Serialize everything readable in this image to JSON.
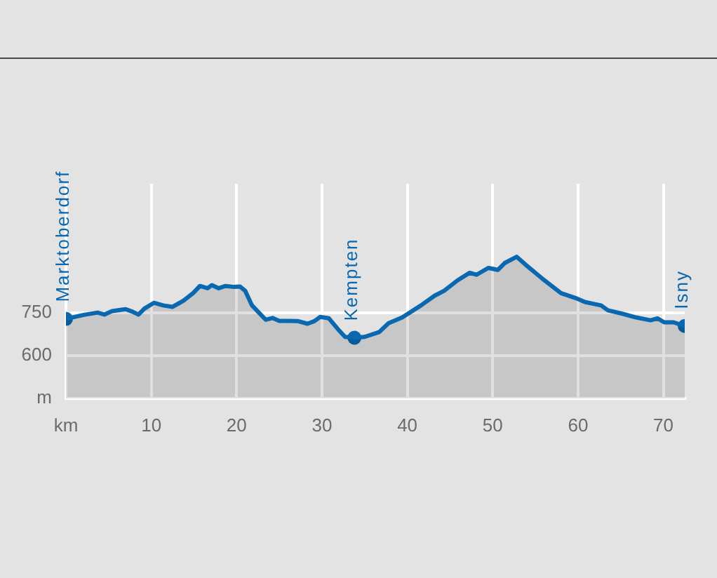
{
  "chart_data": {
    "type": "area",
    "series": [
      {
        "color": "#0a68b0",
        "marker": "none",
        "x": [
          0,
          2.1,
          3.7,
          4.5,
          5.4,
          7.0,
          7.8,
          8.5,
          9.2,
          10.3,
          11.4,
          12.5,
          13.8,
          14.9,
          15.7,
          16.6,
          17.1,
          17.9,
          18.7,
          19.6,
          20.4,
          21.0,
          21.8,
          22.6,
          23.4,
          24.2,
          25.0,
          26.1,
          27.2,
          28.3,
          29.1,
          29.8,
          30.8,
          31.9,
          32.7,
          33.8,
          35.0,
          36.7,
          37.8,
          39.4,
          41.6,
          43.2,
          44.3,
          45.9,
          47.3,
          48.1,
          49.5,
          50.6,
          51.4,
          52.8,
          53.9,
          55.8,
          58.0,
          59.7,
          60.8,
          61.9,
          62.7,
          63.5,
          65.2,
          66.8,
          68.5,
          69.3,
          70.1,
          71.2,
          72.5
        ],
        "values": [
          728,
          742,
          750,
          743,
          755,
          762,
          753,
          743,
          764,
          784,
          775,
          770,
          792,
          818,
          843,
          835,
          846,
          835,
          843,
          840,
          841,
          826,
          775,
          750,
          725,
          731,
          721,
          721,
          720,
          711,
          720,
          735,
          730,
          691,
          665,
          662,
          665,
          682,
          713,
          733,
          775,
          809,
          826,
          863,
          889,
          882,
          906,
          899,
          923,
          945,
          916,
          869,
          818,
          801,
          787,
          780,
          775,
          758,
          746,
          733,
          723,
          730,
          716,
          716,
          703
        ]
      },
      {
        "type": "scatter",
        "color": "#0a68b0",
        "marker": "circle",
        "x": [
          0,
          33.8,
          72.5
        ],
        "values": [
          728,
          662,
          703
        ]
      }
    ],
    "xlim": [
      0,
      72.5
    ],
    "xticks": [
      {
        "value": 0,
        "label": "km"
      },
      10,
      20,
      30,
      40,
      50,
      60,
      70
    ],
    "ylim": [
      450,
      1200
    ],
    "yticks": [
      {
        "value": 450,
        "label": "m"
      },
      600,
      750
    ],
    "grid": true,
    "annotations": [
      {
        "text": "Marktoberdorf",
        "x": 0,
        "y": 728
      },
      {
        "text": "Kempten",
        "x": 33.8,
        "y": 662
      },
      {
        "text": "Isny",
        "x": 72.5,
        "y": 703
      }
    ]
  }
}
